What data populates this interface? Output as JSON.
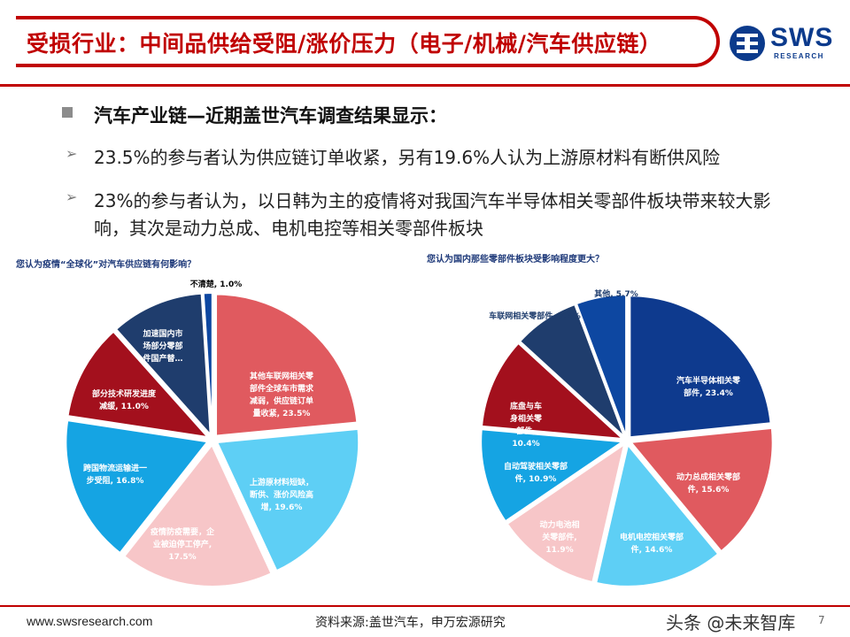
{
  "header": {
    "title": "受损行业：中间品供给受阻/涨价压力（电子/机械/汽车供应链）",
    "logo": {
      "name": "SWS",
      "sub": "RESEARCH"
    }
  },
  "bullets": {
    "main": "汽车产业链—近期盖世汽车调查结果显示：",
    "item1": "23.5%的参与者认为供应链订单收紧，另有19.6%人认为上游原材料有断供风险",
    "item2_line1": "23%的参与者认为，以日韩为主的疫情将对我国汽车半导体相关零部件板块带来较大影",
    "item2_line2": "响，其次是动力总成、电机电控等相关零部件板块"
  },
  "footer": {
    "url": "www.swsresearch.com",
    "source": "资料来源:盖世汽车，申万宏源研究",
    "watermark": "头条 @未来智库",
    "page": "7"
  },
  "colors": {
    "accent": "#c00000",
    "brand": "#0b3a8c"
  },
  "chart_data": [
    {
      "type": "pie",
      "title": "您认为疫情“全球化”对汽车供应链有何影响？",
      "slices": [
        {
          "label_lines": [
            "其他车联网相关零",
            "部件全球车市需求",
            "减弱，供应链订单",
            "量收紧, 23.5%"
          ],
          "value": 23.5,
          "color": "#e05a5f"
        },
        {
          "label_lines": [
            "上游原材料短缺，",
            "断供、涨价风险高",
            "增, 19.6%"
          ],
          "value": 19.6,
          "color": "#5ecff5"
        },
        {
          "label_lines": [
            "疫情防疫需要，企",
            "业被迫停工停产,",
            "17.5%"
          ],
          "value": 17.5,
          "color": "#f7c6c8"
        },
        {
          "label_lines": [
            "跨国物流运输进一",
            "步受阻, 16.8%"
          ],
          "value": 16.8,
          "color": "#15a4e3"
        },
        {
          "label_lines": [
            "部分技术研发进度",
            "减缓, 11.0%"
          ],
          "value": 11.0,
          "color": "#a3101d"
        },
        {
          "label_lines": [
            "加速国内市",
            "场部分零部",
            "件国产替…"
          ],
          "value": 10.6,
          "color": "#1f3d6d"
        },
        {
          "label_lines": [
            "不清楚, 1.0%"
          ],
          "value": 1.0,
          "color": "#0d47a1"
        }
      ]
    },
    {
      "type": "pie",
      "title": "您认为国内那些零部件板块受影响程度更大？",
      "slices": [
        {
          "label_lines": [
            "汽车半导体相关零",
            "部件, 23.4%"
          ],
          "value": 23.4,
          "color": "#0e3a8e"
        },
        {
          "label_lines": [
            "动力总成相关零部",
            "件, 15.6%"
          ],
          "value": 15.6,
          "color": "#e05a5f"
        },
        {
          "label_lines": [
            "电机电控相关零部",
            "件, 14.6%"
          ],
          "value": 14.6,
          "color": "#5ecff5"
        },
        {
          "label_lines": [
            "动力电池相",
            "关零部件,",
            "11.9%"
          ],
          "value": 11.9,
          "color": "#f7c6c8"
        },
        {
          "label_lines": [
            "自动驾驶相关零部",
            "件, 10.9%"
          ],
          "value": 10.9,
          "color": "#15a4e3"
        },
        {
          "label_lines": [
            "底盘与车",
            "身相关零",
            "部件,",
            "10.4%"
          ],
          "value": 10.4,
          "color": "#a3101d"
        },
        {
          "label_lines": [
            "车联网相关零部件, 7.5%"
          ],
          "value": 7.5,
          "color": "#1f3d6d"
        },
        {
          "label_lines": [
            "其他, 5.7%"
          ],
          "value": 5.7,
          "color": "#0d47a1"
        }
      ]
    }
  ]
}
